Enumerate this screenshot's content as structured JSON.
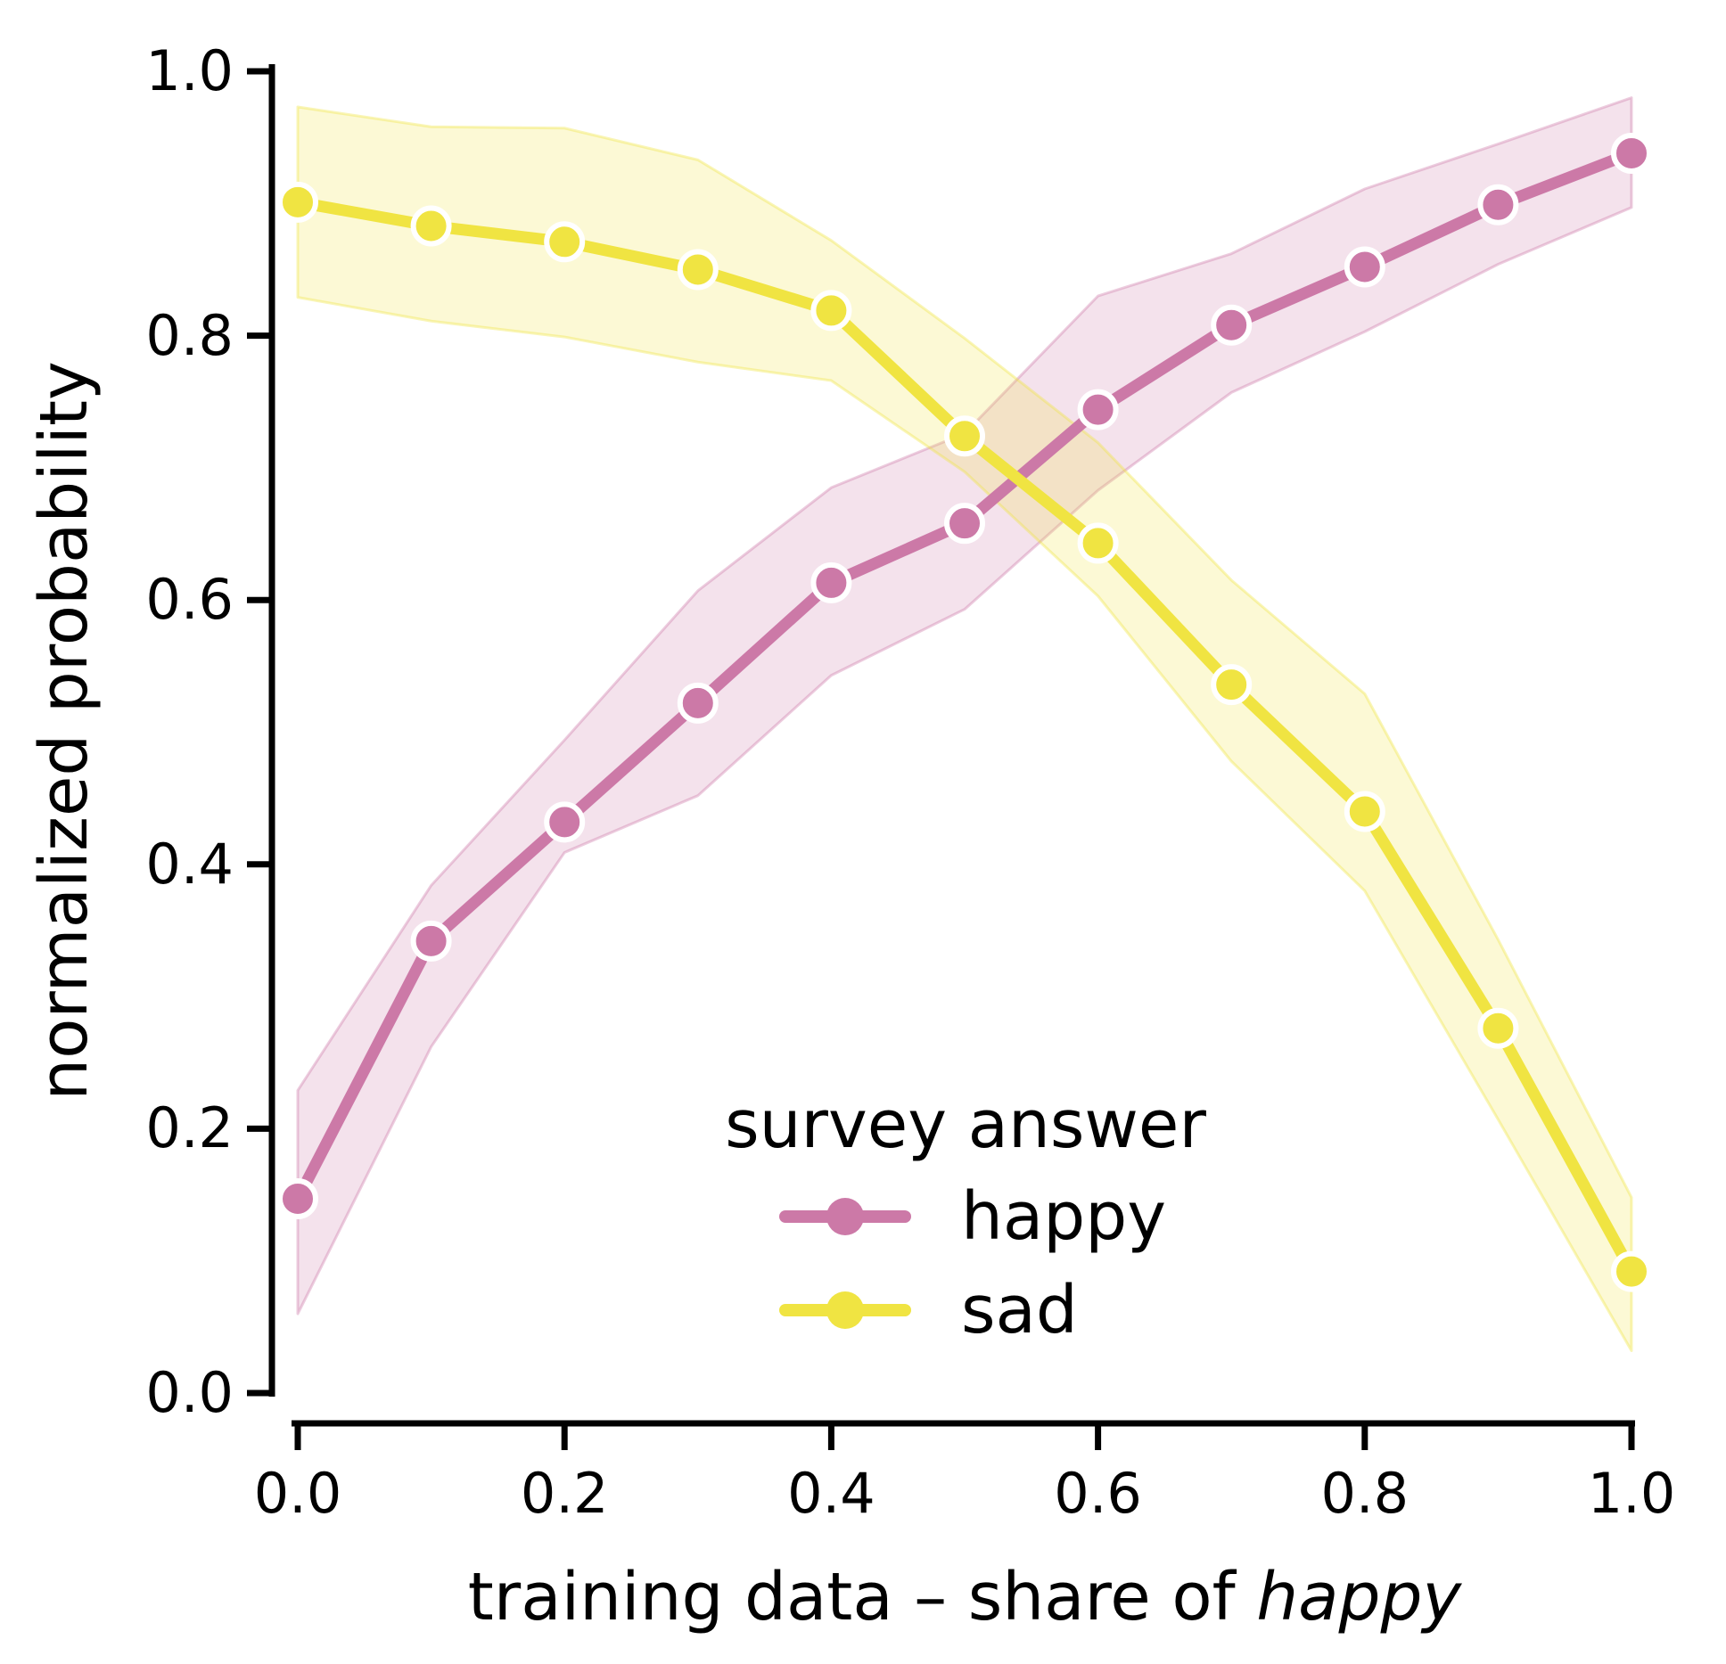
{
  "chart_data": {
    "type": "line",
    "x": [
      0.0,
      0.1,
      0.2,
      0.3,
      0.4,
      0.5,
      0.6,
      0.7,
      0.8,
      0.9,
      1.0
    ],
    "series": [
      {
        "name": "happy",
        "color": "#CC79A7",
        "values": [
          0.147,
          0.342,
          0.432,
          0.522,
          0.613,
          0.658,
          0.744,
          0.808,
          0.852,
          0.899,
          0.938
        ],
        "band_upper": [
          0.229,
          0.384,
          0.494,
          0.607,
          0.685,
          0.726,
          0.83,
          0.862,
          0.911,
          0.945,
          0.98
        ],
        "band_lower": [
          0.06,
          0.262,
          0.409,
          0.452,
          0.543,
          0.593,
          0.683,
          0.757,
          0.803,
          0.854,
          0.897
        ]
      },
      {
        "name": "sad",
        "color": "#F0E442",
        "values": [
          0.901,
          0.883,
          0.871,
          0.85,
          0.819,
          0.724,
          0.643,
          0.536,
          0.44,
          0.276,
          0.092
        ],
        "band_upper": [
          0.973,
          0.958,
          0.957,
          0.933,
          0.872,
          0.798,
          0.719,
          0.615,
          0.529,
          0.343,
          0.148
        ],
        "band_lower": [
          0.829,
          0.811,
          0.799,
          0.78,
          0.766,
          0.697,
          0.603,
          0.478,
          0.38,
          0.207,
          0.032
        ]
      }
    ],
    "xlabel_prefix": "training data – share of ",
    "xlabel_italic": "happy",
    "ylabel": "normalized probability",
    "legend_title": "survey answer",
    "xlim": [
      0.0,
      1.0
    ],
    "ylim": [
      0.0,
      1.0
    ],
    "x_ticks": [
      0.0,
      0.2,
      0.4,
      0.6,
      0.8,
      1.0
    ],
    "x_tick_labels": [
      "0.0",
      "0.2",
      "0.4",
      "0.6",
      "0.8",
      "1.0"
    ],
    "y_ticks": [
      0.0,
      0.2,
      0.4,
      0.6,
      0.8,
      1.0
    ],
    "y_tick_labels": [
      "0.0",
      "0.2",
      "0.4",
      "0.6",
      "0.8",
      "1.0"
    ],
    "grid": "off",
    "legend_position": "lower center-right inside plot",
    "band_fill_opacity": 0.22,
    "axis_color": "#000000",
    "background_color": "#ffffff"
  }
}
